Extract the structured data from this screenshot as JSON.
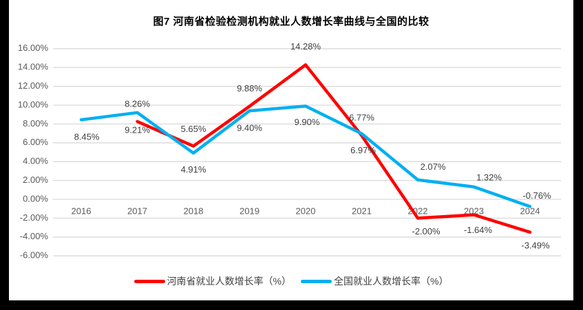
{
  "title": "图7  河南省检验检测机构就业人数增长率曲线与全国的比较",
  "colors": {
    "frame_bg": "#000000",
    "chart_bg": "#ffffff",
    "gridline": "#d9d9d9",
    "axis_text": "#595959",
    "data_label_text": "#3f3f3f",
    "henan_red": "#ff0000",
    "national_blue": "#00b0f0"
  },
  "chart_data": {
    "type": "line",
    "title": "图7  河南省检验检测机构就业人数增长率曲线与全国的比较",
    "categories": [
      "2016",
      "2017",
      "2018",
      "2019",
      "2020",
      "2021",
      "2022",
      "2023",
      "2024"
    ],
    "xlabel": "",
    "ylabel": "",
    "ylim": [
      -6,
      16
    ],
    "grid": true,
    "legend_position": "bottom",
    "y_ticks": [
      {
        "value": 16,
        "label": "16.00%"
      },
      {
        "value": 14,
        "label": "14.00%"
      },
      {
        "value": 12,
        "label": "12.00%"
      },
      {
        "value": 10,
        "label": "10.00%"
      },
      {
        "value": 8,
        "label": "8.00%"
      },
      {
        "value": 6,
        "label": "6.00%"
      },
      {
        "value": 4,
        "label": "4.00%"
      },
      {
        "value": 2,
        "label": "2.00%"
      },
      {
        "value": 0,
        "label": "0.00%"
      },
      {
        "value": -2,
        "label": "-2.00%"
      },
      {
        "value": -4,
        "label": "-4.00%"
      },
      {
        "value": -6,
        "label": "-6.00%"
      }
    ],
    "series": [
      {
        "name": "河南省就业人数增长率（%）",
        "color": "#ff0000",
        "values": [
          null,
          8.26,
          5.65,
          9.88,
          14.28,
          6.77,
          -2.0,
          -1.64,
          -3.49
        ],
        "labels": [
          "",
          "8.26%",
          "5.65%",
          "9.88%",
          "14.28%",
          "6.77%",
          "-2.00%",
          "-1.64%",
          "-3.49%"
        ]
      },
      {
        "name": "全国就业人数增长率（%）",
        "color": "#00b0f0",
        "values": [
          8.45,
          9.21,
          4.91,
          9.4,
          9.9,
          6.97,
          2.07,
          1.32,
          -0.76
        ],
        "labels": [
          "8.45%",
          "9.21%",
          "4.91%",
          "9.40%",
          "9.90%",
          "6.97%",
          "2.07%",
          "1.32%",
          "-0.76%"
        ]
      }
    ]
  }
}
